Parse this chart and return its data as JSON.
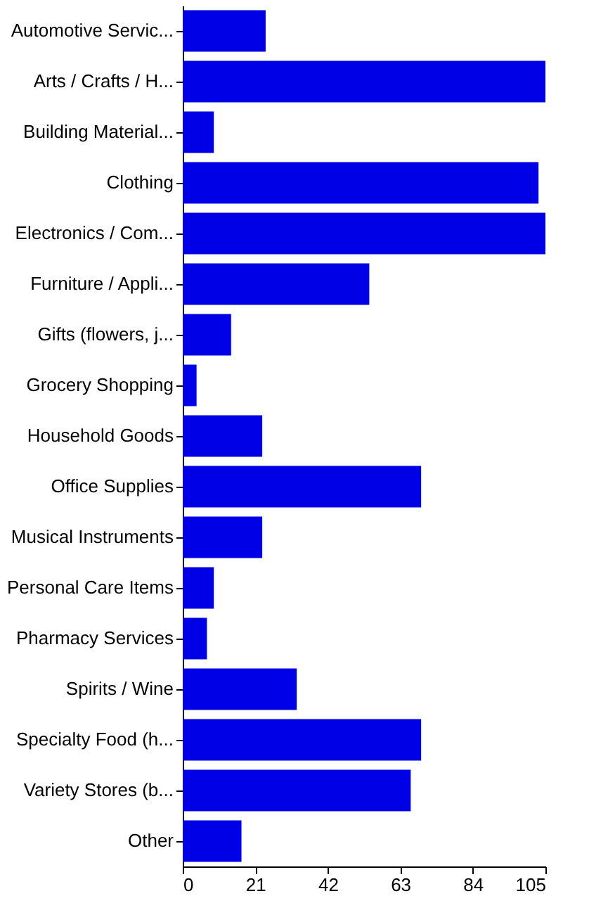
{
  "chart_data": {
    "type": "bar",
    "orientation": "horizontal",
    "categories": [
      "Automotive Servic...",
      "Arts / Crafts / H...",
      "Building Material...",
      "Clothing",
      "Electronics / Com...",
      "Furniture / Appli...",
      "Gifts (flowers, j...",
      "Grocery Shopping",
      "Household Goods",
      "Office Supplies",
      "Musical Instruments",
      "Personal Care Items",
      "Pharmacy Services",
      "Spirits / Wine",
      "Specialty Food (h...",
      "Variety Stores (b...",
      "Other"
    ],
    "values": [
      24,
      105,
      9,
      103,
      105,
      54,
      14,
      4,
      23,
      69,
      23,
      9,
      7,
      33,
      69,
      66,
      17
    ],
    "color": "#0000e6",
    "xlim": [
      0,
      105
    ],
    "xticks": [
      0,
      21,
      42,
      63,
      84,
      105
    ],
    "grid": false
  }
}
